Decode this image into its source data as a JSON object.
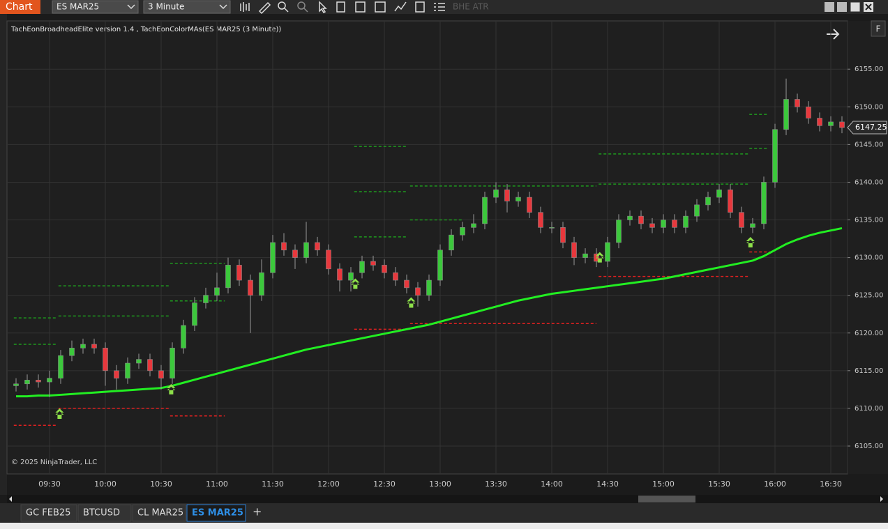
{
  "toolbar": {
    "app": "Chart",
    "instrument": "ES MAR25",
    "interval": "3 Minute",
    "indicator": "BHE ATR"
  },
  "panel_button": "F",
  "tabs": [
    "GC FEB25",
    "BTCUSD",
    "CL MAR25",
    "ES MAR25"
  ],
  "add_tab": "+",
  "chart_data": {
    "type": "candlestick",
    "subtitle": "TachEonBroadheadElite version 1.4 , TachEonColorMAs(ES MAR25 (3 Minute))",
    "copyright": "© 2025 NinjaTrader, LLC",
    "categories": [
      null,
      null,
      null,
      "09:30",
      null,
      null,
      null,
      null,
      "10:00",
      null,
      null,
      null,
      null,
      "10:30",
      null,
      null,
      null,
      null,
      "11:00",
      null,
      null,
      null,
      null,
      "11:30",
      null,
      null,
      null,
      null,
      "12:00",
      null,
      null,
      null,
      null,
      "12:30",
      null,
      null,
      null,
      null,
      "13:00",
      null,
      null,
      null,
      null,
      "13:30",
      null,
      null,
      null,
      null,
      "14:00",
      null,
      null,
      null,
      null,
      "14:30",
      null,
      null,
      null,
      null,
      "15:00",
      null,
      null,
      null,
      null,
      "15:30",
      null,
      null,
      null,
      null,
      "16:00",
      null,
      null,
      null,
      null,
      "16:30",
      null
    ],
    "open": [
      6113,
      6113.25,
      6113.75,
      6113.5,
      6114,
      6117,
      6118,
      6118.5,
      6118,
      6115,
      6114,
      6116,
      6116.5,
      6115,
      6114,
      6118,
      6121,
      6124,
      6125,
      6126,
      6129,
      6127,
      6125,
      6128,
      6132,
      6131,
      6130,
      6132,
      6131,
      6128.5,
      6127,
      6128,
      6129.5,
      6129,
      6128,
      6127,
      6126,
      6125,
      6127,
      6131,
      6133,
      6134,
      6134.5,
      6138,
      6139,
      6137.5,
      6138,
      6136,
      6134,
      6134,
      6132,
      6130,
      6130.5,
      6129.5,
      6132,
      6135,
      6135.5,
      6134.5,
      6134,
      6135,
      6134,
      6135.5,
      6137,
      6138,
      6139,
      6136,
      6134,
      6134.5,
      6140,
      6147,
      6151,
      6150,
      6148.5,
      6147.5,
      6148
    ],
    "high": [
      6114,
      6114.5,
      6114.5,
      6115,
      6117.75,
      6119,
      6119.25,
      6119.25,
      6118.75,
      6115.75,
      6116.75,
      6117.25,
      6117.25,
      6115.75,
      6118.75,
      6121.75,
      6124.75,
      6126,
      6128,
      6130,
      6129.75,
      6127.75,
      6129.75,
      6133,
      6133.25,
      6131.75,
      6134.75,
      6132.75,
      6131.75,
      6129.25,
      6128.75,
      6130.25,
      6130.25,
      6129.75,
      6128.75,
      6127.75,
      6126.75,
      6127.75,
      6131.75,
      6133.75,
      6134.75,
      6135.75,
      6138.75,
      6140,
      6139.75,
      6138.75,
      6138.75,
      6136.75,
      6134.75,
      6134.75,
      6132.75,
      6131.25,
      6131.25,
      6132.75,
      6135.75,
      6136.25,
      6136.25,
      6135.25,
      6135.75,
      6135.75,
      6136.25,
      6137.75,
      6138.75,
      6139.75,
      6139.75,
      6136.75,
      6135.25,
      6140.75,
      6147.75,
      6153.75,
      6151.75,
      6150.75,
      6149.25,
      6148.75,
      6148.75
    ],
    "low": [
      6112.25,
      6112.5,
      6112.75,
      6111.5,
      6113.25,
      6116.25,
      6117.25,
      6117.25,
      6113,
      6112.5,
      6113.25,
      6115.25,
      6114.25,
      6112.5,
      6113.25,
      6117.25,
      6120.25,
      6123.25,
      6124.25,
      6125.25,
      6126.25,
      6120,
      6124.25,
      6127.25,
      6130.25,
      6128.5,
      6129.25,
      6130.25,
      6127.75,
      6125.5,
      6125.5,
      6127.25,
      6128.25,
      6127.25,
      6126.25,
      6125.25,
      6123.5,
      6124.25,
      6126.25,
      6130.25,
      6132.25,
      6133.25,
      6133.75,
      6137.25,
      6136,
      6136.75,
      6135.25,
      6133.25,
      6133.25,
      6131.25,
      6129,
      6129.25,
      6128.75,
      6128.75,
      6131.25,
      6134.25,
      6133.75,
      6133.25,
      6133.25,
      6133.25,
      6133.25,
      6134.75,
      6136.25,
      6137.25,
      6135.25,
      6133.25,
      6133.25,
      6133.75,
      6139.25,
      6146.25,
      6149.25,
      6147.75,
      6146.75,
      6146.75,
      6146.5
    ],
    "close": [
      6113.25,
      6113.75,
      6113.5,
      6114,
      6117,
      6118,
      6118.5,
      6118,
      6115,
      6114,
      6116,
      6116.5,
      6115,
      6114,
      6118,
      6121,
      6124,
      6125,
      6126,
      6129,
      6127,
      6125,
      6128,
      6132,
      6131,
      6130,
      6132,
      6131,
      6128.5,
      6127,
      6128,
      6129.5,
      6129,
      6128,
      6127,
      6126,
      6125,
      6127,
      6131,
      6133,
      6134,
      6134.5,
      6138,
      6139,
      6137.5,
      6138,
      6136,
      6134,
      6134,
      6132,
      6130,
      6130.5,
      6129.5,
      6132,
      6135,
      6135.5,
      6134.5,
      6134,
      6135,
      6134,
      6135.5,
      6137,
      6138,
      6139,
      6136,
      6134,
      6134.5,
      6140,
      6147,
      6151,
      6150,
      6148.5,
      6147.5,
      6148,
      6147.25
    ],
    "up_color": "#3cc83c",
    "down_color": "#e8383d",
    "moving_average": {
      "color": "#22ee22",
      "values": [
        6111.6,
        6111.6,
        6111.7,
        6111.7,
        6111.8,
        6111.9,
        6112,
        6112.1,
        6112.2,
        6112.3,
        6112.4,
        6112.5,
        6112.6,
        6112.7,
        6113,
        6113.4,
        6113.8,
        6114.2,
        6114.6,
        6115,
        6115.4,
        6115.8,
        6116.2,
        6116.6,
        6117,
        6117.4,
        6117.8,
        6118.1,
        6118.4,
        6118.7,
        6119,
        6119.3,
        6119.6,
        6119.9,
        6120.2,
        6120.5,
        6120.8,
        6121.1,
        6121.5,
        6121.9,
        6122.3,
        6122.7,
        6123.1,
        6123.5,
        6123.9,
        6124.3,
        6124.6,
        6124.9,
        6125.2,
        6125.4,
        6125.6,
        6125.8,
        6126,
        6126.2,
        6126.4,
        6126.6,
        6126.8,
        6127,
        6127.2,
        6127.5,
        6127.8,
        6128.1,
        6128.4,
        6128.7,
        6129,
        6129.3,
        6129.6,
        6130.2,
        6131,
        6131.8,
        6132.4,
        6132.9,
        6133.3,
        6133.6,
        6133.9
      ]
    },
    "levels": [
      {
        "color": "#1f9a1f",
        "x": [
          -0.2,
          3.7
        ],
        "value": 6118.5
      },
      {
        "color": "#1f9a1f",
        "x": [
          -0.2,
          3.7
        ],
        "value": 6122
      },
      {
        "color": "#1f9a1f",
        "x": [
          3.8,
          13.7
        ],
        "value": 6126.25
      },
      {
        "color": "#1f9a1f",
        "x": [
          3.8,
          13.7
        ],
        "value": 6122.25
      },
      {
        "color": "#1f9a1f",
        "x": [
          13.8,
          18.7
        ],
        "value": 6129.25
      },
      {
        "color": "#1f9a1f",
        "x": [
          13.8,
          18.7
        ],
        "value": 6124.25
      },
      {
        "color": "#1f9a1f",
        "x": [
          30.3,
          35.1
        ],
        "value": 6144.75
      },
      {
        "color": "#1f9a1f",
        "x": [
          30.3,
          35.1
        ],
        "value": 6138.75
      },
      {
        "color": "#1f9a1f",
        "x": [
          30.3,
          35.1
        ],
        "value": 6132.75
      },
      {
        "color": "#1f9a1f",
        "x": [
          35.3,
          52
        ],
        "value": 6139.5
      },
      {
        "color": "#1f9a1f",
        "x": [
          35.3,
          40.1
        ],
        "value": 6135
      },
      {
        "color": "#1f9a1f",
        "x": [
          52.2,
          65.6
        ],
        "value": 6143.75
      },
      {
        "color": "#1f9a1f",
        "x": [
          52.2,
          65.6
        ],
        "value": 6139.75
      },
      {
        "color": "#1f9a1f",
        "x": [
          65.7,
          67.3
        ],
        "value": 6149
      },
      {
        "color": "#1f9a1f",
        "x": [
          65.7,
          67.3
        ],
        "value": 6144.5
      },
      {
        "color": "#e02020",
        "x": [
          -0.2,
          3.7
        ],
        "value": 6107.75
      },
      {
        "color": "#e02020",
        "x": [
          3.8,
          13.7
        ],
        "value": 6110
      },
      {
        "color": "#e02020",
        "x": [
          13.8,
          18.7
        ],
        "value": 6109
      },
      {
        "color": "#e02020",
        "x": [
          30.3,
          35.1
        ],
        "value": 6120.5
      },
      {
        "color": "#e02020",
        "x": [
          35.3,
          52
        ],
        "value": 6121.25
      },
      {
        "color": "#e02020",
        "x": [
          52.2,
          65.6
        ],
        "value": 6127.5
      },
      {
        "color": "#e02020",
        "x": [
          65.7,
          67.6
        ],
        "value": 6130.75
      }
    ],
    "signals": {
      "color": "#8ee04a",
      "x": [
        3.9,
        13.9,
        30.4,
        35.4,
        52.3,
        65.8
      ],
      "values": [
        6109.25,
        6112.5,
        6126.5,
        6124,
        6130,
        6132
      ]
    },
    "ylim": [
      6101.3,
      6161.4
    ],
    "yticks": [
      {
        "value": 6105,
        "label": "6105.00"
      },
      {
        "value": 6110,
        "label": "6110.00"
      },
      {
        "value": 6115,
        "label": "6115.00"
      },
      {
        "value": 6120,
        "label": "6120.00"
      },
      {
        "value": 6125,
        "label": "6125.00"
      },
      {
        "value": 6130,
        "label": "6130.00"
      },
      {
        "value": 6135,
        "label": "6135.00"
      },
      {
        "value": 6140,
        "label": "6140.00"
      },
      {
        "value": 6145,
        "label": "6145.00"
      },
      {
        "value": 6150,
        "label": "6150.00"
      },
      {
        "value": 6155,
        "label": "6155.00"
      }
    ],
    "grid": true,
    "last_price": 6147.25
  }
}
